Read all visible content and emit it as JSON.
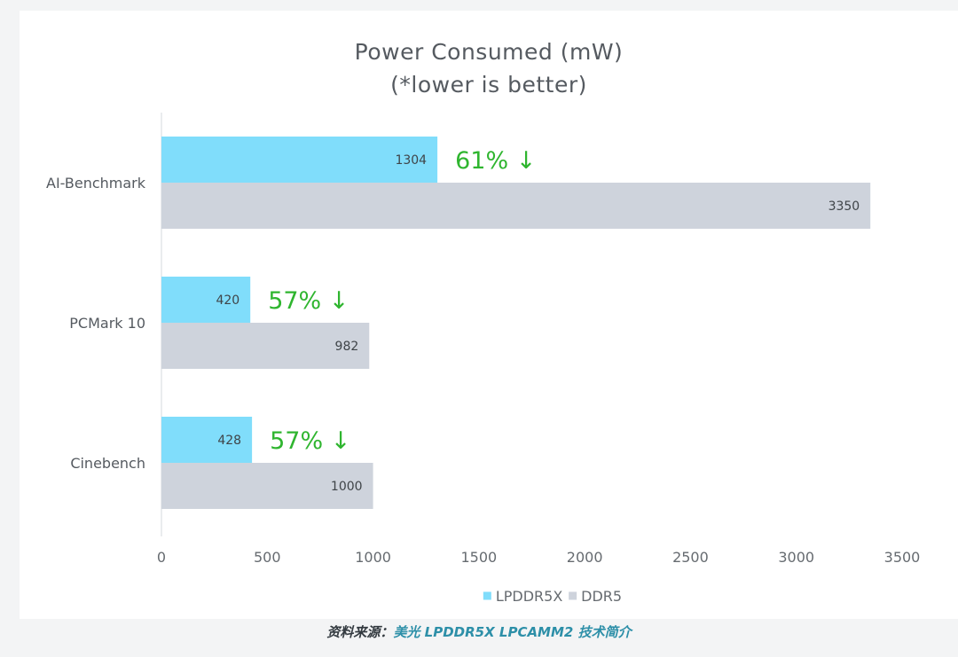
{
  "chart_data": {
    "type": "bar",
    "orientation": "horizontal",
    "title": "Power Consumed (mW)",
    "subtitle": "(*lower is better)",
    "categories": [
      "AI-Benchmark",
      "PCMark 10",
      "Cinebench"
    ],
    "series": [
      {
        "name": "LPDDR5X",
        "color": "#80ddfb",
        "values": [
          1304,
          420,
          428
        ]
      },
      {
        "name": "DDR5",
        "color": "#ced3dc",
        "values": [
          3350,
          982,
          1000
        ]
      }
    ],
    "annotations": [
      "61% ↓",
      "57% ↓",
      "57% ↓"
    ],
    "annotation_color": "#2fb52f",
    "xlim": [
      0,
      3500
    ],
    "xticks": [
      0,
      500,
      1000,
      1500,
      2000,
      2500,
      3000,
      3500
    ],
    "grid": false,
    "legend_position": "bottom"
  },
  "caption": {
    "label": "资料来源：",
    "value": "美光 LPDDR5X LPCAMM2 技术简介"
  }
}
